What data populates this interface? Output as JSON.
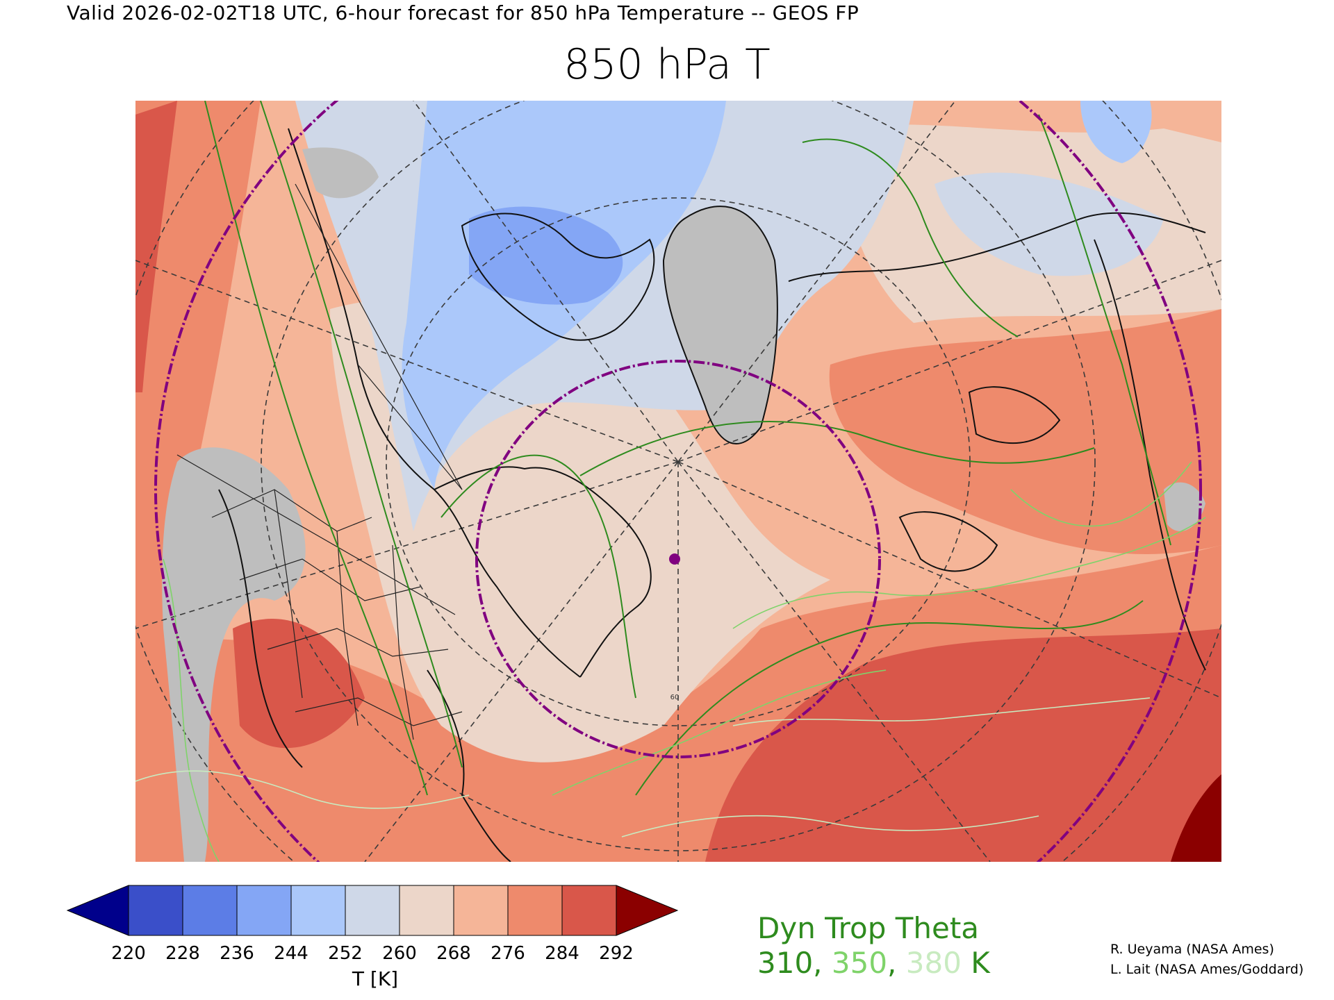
{
  "header": {
    "subtitle": "Valid 2026-02-02T18 UTC, 6-hour forecast for 850 hPa Temperature -- GEOS FP",
    "title": "850 hPa T"
  },
  "map": {
    "projection": "north polar stereographic",
    "variable": "850 hPa temperature",
    "center_marker_color": "#800080",
    "circle_color": "#800080",
    "latitude_label": "60"
  },
  "colorbar": {
    "label": "T [K]",
    "ticks": [
      "220",
      "228",
      "236",
      "244",
      "252",
      "260",
      "268",
      "276",
      "284",
      "292"
    ],
    "colors": [
      "#00008b",
      "#3a4fc9",
      "#5c7de6",
      "#84a6f5",
      "#abc8fa",
      "#cfd8e8",
      "#ecd6c9",
      "#f5b598",
      "#ee8a6c",
      "#d9574a",
      "#8b0000"
    ]
  },
  "overlay": {
    "title": "Dyn Trop Theta",
    "levels": [
      "310",
      "350",
      "380"
    ],
    "unit": "K",
    "level_colors": [
      "#2e8b1e",
      "#7fd36a",
      "#c8ebc0"
    ]
  },
  "credits": {
    "line1": "R. Ueyama (NASA Ames)",
    "line2": "L. Lait (NASA Ames/Goddard)"
  }
}
